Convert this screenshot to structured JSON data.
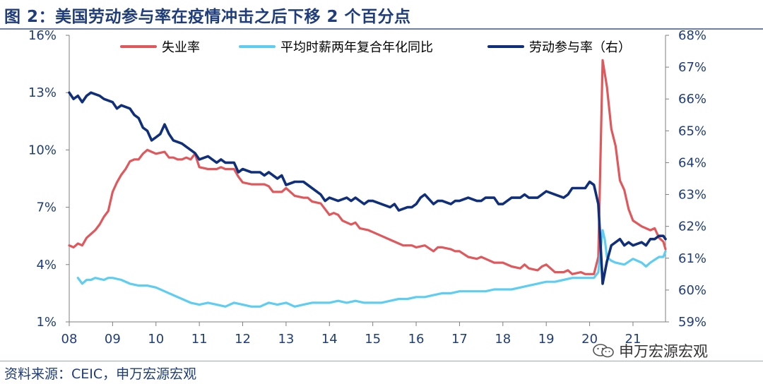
{
  "figure": {
    "title": "图 2：美国劳动参与率在疫情冲击之后下移 2 个百分点",
    "source": "资料来源：CEIC，申万宏源宏观",
    "watermark": "申万宏源宏观",
    "watermark_icon": "wechat-icon"
  },
  "chart_data": {
    "type": "line",
    "x_tick_labels": [
      "08",
      "09",
      "10",
      "11",
      "12",
      "13",
      "14",
      "15",
      "16",
      "17",
      "18",
      "19",
      "20",
      "21"
    ],
    "xlim": [
      2008,
      2021.75
    ],
    "y_left": {
      "ticks": [
        "16%",
        "13%",
        "10%",
        "7%",
        "4%",
        "1%"
      ],
      "ylim": [
        1,
        16
      ]
    },
    "y_right": {
      "ticks": [
        "68%",
        "67%",
        "66%",
        "65%",
        "64%",
        "63%",
        "62%",
        "61%",
        "60%",
        "59%"
      ],
      "ylim": [
        59,
        68
      ]
    },
    "legend_position": "top",
    "grid": false,
    "series": [
      {
        "name": "失业率",
        "axis": "left",
        "color": "#e0585c",
        "points": [
          [
            2008.0,
            5.0
          ],
          [
            2008.1,
            4.9
          ],
          [
            2008.2,
            5.1
          ],
          [
            2008.3,
            5.0
          ],
          [
            2008.4,
            5.4
          ],
          [
            2008.5,
            5.6
          ],
          [
            2008.6,
            5.8
          ],
          [
            2008.7,
            6.1
          ],
          [
            2008.8,
            6.5
          ],
          [
            2008.9,
            6.8
          ],
          [
            2009.0,
            7.8
          ],
          [
            2009.1,
            8.3
          ],
          [
            2009.2,
            8.7
          ],
          [
            2009.3,
            9.0
          ],
          [
            2009.4,
            9.4
          ],
          [
            2009.5,
            9.5
          ],
          [
            2009.6,
            9.5
          ],
          [
            2009.7,
            9.8
          ],
          [
            2009.8,
            10.0
          ],
          [
            2009.9,
            9.9
          ],
          [
            2010.0,
            9.8
          ],
          [
            2010.2,
            9.9
          ],
          [
            2010.3,
            9.6
          ],
          [
            2010.4,
            9.6
          ],
          [
            2010.5,
            9.5
          ],
          [
            2010.6,
            9.5
          ],
          [
            2010.7,
            9.6
          ],
          [
            2010.8,
            9.5
          ],
          [
            2010.9,
            9.8
          ],
          [
            2011.0,
            9.1
          ],
          [
            2011.2,
            9.0
          ],
          [
            2011.4,
            9.0
          ],
          [
            2011.5,
            9.1
          ],
          [
            2011.6,
            9.0
          ],
          [
            2011.8,
            9.0
          ],
          [
            2011.9,
            8.6
          ],
          [
            2012.0,
            8.3
          ],
          [
            2012.2,
            8.2
          ],
          [
            2012.5,
            8.2
          ],
          [
            2012.6,
            8.1
          ],
          [
            2012.7,
            7.8
          ],
          [
            2012.9,
            7.8
          ],
          [
            2013.0,
            8.0
          ],
          [
            2013.2,
            7.6
          ],
          [
            2013.4,
            7.5
          ],
          [
            2013.5,
            7.5
          ],
          [
            2013.6,
            7.3
          ],
          [
            2013.8,
            7.2
          ],
          [
            2013.9,
            6.9
          ],
          [
            2014.0,
            6.6
          ],
          [
            2014.1,
            6.7
          ],
          [
            2014.2,
            6.6
          ],
          [
            2014.3,
            6.3
          ],
          [
            2014.4,
            6.2
          ],
          [
            2014.5,
            6.1
          ],
          [
            2014.6,
            6.2
          ],
          [
            2014.7,
            5.9
          ],
          [
            2014.9,
            5.8
          ],
          [
            2015.0,
            5.7
          ],
          [
            2015.2,
            5.5
          ],
          [
            2015.4,
            5.3
          ],
          [
            2015.6,
            5.1
          ],
          [
            2015.7,
            5.0
          ],
          [
            2015.9,
            5.0
          ],
          [
            2016.0,
            4.9
          ],
          [
            2016.2,
            5.0
          ],
          [
            2016.4,
            4.7
          ],
          [
            2016.5,
            4.9
          ],
          [
            2016.6,
            4.9
          ],
          [
            2016.8,
            4.8
          ],
          [
            2016.9,
            4.7
          ],
          [
            2017.0,
            4.7
          ],
          [
            2017.2,
            4.4
          ],
          [
            2017.4,
            4.3
          ],
          [
            2017.5,
            4.4
          ],
          [
            2017.6,
            4.3
          ],
          [
            2017.8,
            4.1
          ],
          [
            2017.9,
            4.1
          ],
          [
            2018.0,
            4.1
          ],
          [
            2018.2,
            3.9
          ],
          [
            2018.4,
            3.8
          ],
          [
            2018.5,
            4.0
          ],
          [
            2018.6,
            3.8
          ],
          [
            2018.8,
            3.7
          ],
          [
            2018.9,
            3.9
          ],
          [
            2019.0,
            4.0
          ],
          [
            2019.2,
            3.6
          ],
          [
            2019.4,
            3.6
          ],
          [
            2019.5,
            3.7
          ],
          [
            2019.6,
            3.5
          ],
          [
            2019.8,
            3.6
          ],
          [
            2019.9,
            3.5
          ],
          [
            2020.0,
            3.5
          ],
          [
            2020.1,
            3.5
          ],
          [
            2020.2,
            4.4
          ],
          [
            2020.3,
            14.7
          ],
          [
            2020.4,
            13.3
          ],
          [
            2020.5,
            11.1
          ],
          [
            2020.6,
            10.2
          ],
          [
            2020.7,
            8.4
          ],
          [
            2020.8,
            7.9
          ],
          [
            2020.9,
            6.9
          ],
          [
            2021.0,
            6.3
          ],
          [
            2021.2,
            6.0
          ],
          [
            2021.4,
            5.8
          ],
          [
            2021.5,
            5.9
          ],
          [
            2021.6,
            5.4
          ],
          [
            2021.7,
            5.2
          ],
          [
            2021.75,
            4.8
          ]
        ]
      },
      {
        "name": "平均时薪两年复合年化同比",
        "axis": "left",
        "color": "#5dcdf2",
        "points": [
          [
            2008.2,
            3.3
          ],
          [
            2008.3,
            3.0
          ],
          [
            2008.4,
            3.2
          ],
          [
            2008.5,
            3.2
          ],
          [
            2008.6,
            3.3
          ],
          [
            2008.8,
            3.2
          ],
          [
            2008.9,
            3.3
          ],
          [
            2009.0,
            3.3
          ],
          [
            2009.2,
            3.2
          ],
          [
            2009.4,
            3.0
          ],
          [
            2009.6,
            2.9
          ],
          [
            2009.8,
            2.9
          ],
          [
            2010.0,
            2.8
          ],
          [
            2010.2,
            2.6
          ],
          [
            2010.4,
            2.4
          ],
          [
            2010.6,
            2.2
          ],
          [
            2010.8,
            2.0
          ],
          [
            2011.0,
            1.9
          ],
          [
            2011.2,
            2.0
          ],
          [
            2011.4,
            1.9
          ],
          [
            2011.6,
            1.8
          ],
          [
            2011.8,
            2.0
          ],
          [
            2012.0,
            1.9
          ],
          [
            2012.2,
            1.8
          ],
          [
            2012.4,
            1.8
          ],
          [
            2012.6,
            2.0
          ],
          [
            2012.8,
            1.9
          ],
          [
            2013.0,
            2.0
          ],
          [
            2013.2,
            1.8
          ],
          [
            2013.4,
            1.9
          ],
          [
            2013.6,
            2.0
          ],
          [
            2013.8,
            2.0
          ],
          [
            2014.0,
            2.0
          ],
          [
            2014.2,
            2.1
          ],
          [
            2014.4,
            2.0
          ],
          [
            2014.6,
            2.1
          ],
          [
            2014.8,
            2.0
          ],
          [
            2015.0,
            2.0
          ],
          [
            2015.2,
            2.0
          ],
          [
            2015.4,
            2.1
          ],
          [
            2015.6,
            2.2
          ],
          [
            2015.8,
            2.2
          ],
          [
            2016.0,
            2.3
          ],
          [
            2016.2,
            2.3
          ],
          [
            2016.4,
            2.4
          ],
          [
            2016.6,
            2.5
          ],
          [
            2016.8,
            2.5
          ],
          [
            2017.0,
            2.6
          ],
          [
            2017.2,
            2.6
          ],
          [
            2017.4,
            2.6
          ],
          [
            2017.6,
            2.6
          ],
          [
            2017.8,
            2.7
          ],
          [
            2018.0,
            2.7
          ],
          [
            2018.2,
            2.7
          ],
          [
            2018.4,
            2.8
          ],
          [
            2018.6,
            2.9
          ],
          [
            2018.8,
            3.0
          ],
          [
            2019.0,
            3.1
          ],
          [
            2019.2,
            3.1
          ],
          [
            2019.4,
            3.2
          ],
          [
            2019.6,
            3.3
          ],
          [
            2019.8,
            3.3
          ],
          [
            2020.0,
            3.3
          ],
          [
            2020.1,
            3.3
          ],
          [
            2020.2,
            3.6
          ],
          [
            2020.3,
            5.8
          ],
          [
            2020.35,
            5.3
          ],
          [
            2020.4,
            4.4
          ],
          [
            2020.5,
            4.2
          ],
          [
            2020.6,
            4.1
          ],
          [
            2020.8,
            4.0
          ],
          [
            2021.0,
            4.3
          ],
          [
            2021.2,
            4.1
          ],
          [
            2021.3,
            3.9
          ],
          [
            2021.4,
            4.1
          ],
          [
            2021.6,
            4.4
          ],
          [
            2021.7,
            4.4
          ],
          [
            2021.75,
            4.7
          ]
        ]
      },
      {
        "name": "劳动参与率（右）",
        "axis": "right",
        "color": "#102f7a",
        "points": [
          [
            2008.0,
            66.2
          ],
          [
            2008.1,
            66.0
          ],
          [
            2008.2,
            66.1
          ],
          [
            2008.3,
            65.9
          ],
          [
            2008.4,
            66.1
          ],
          [
            2008.5,
            66.2
          ],
          [
            2008.7,
            66.1
          ],
          [
            2008.8,
            66.0
          ],
          [
            2009.0,
            65.9
          ],
          [
            2009.1,
            65.7
          ],
          [
            2009.2,
            65.8
          ],
          [
            2009.4,
            65.7
          ],
          [
            2009.5,
            65.5
          ],
          [
            2009.6,
            65.4
          ],
          [
            2009.7,
            65.1
          ],
          [
            2009.8,
            65.0
          ],
          [
            2009.9,
            64.7
          ],
          [
            2010.0,
            64.8
          ],
          [
            2010.1,
            64.9
          ],
          [
            2010.2,
            65.2
          ],
          [
            2010.3,
            64.9
          ],
          [
            2010.4,
            64.7
          ],
          [
            2010.6,
            64.6
          ],
          [
            2010.7,
            64.5
          ],
          [
            2010.8,
            64.4
          ],
          [
            2010.9,
            64.3
          ],
          [
            2011.0,
            64.1
          ],
          [
            2011.2,
            64.2
          ],
          [
            2011.4,
            64.0
          ],
          [
            2011.5,
            64.1
          ],
          [
            2011.6,
            64.0
          ],
          [
            2011.8,
            64.0
          ],
          [
            2011.9,
            63.7
          ],
          [
            2012.0,
            63.8
          ],
          [
            2012.2,
            63.7
          ],
          [
            2012.4,
            63.7
          ],
          [
            2012.5,
            63.6
          ],
          [
            2012.6,
            63.7
          ],
          [
            2012.8,
            63.5
          ],
          [
            2012.9,
            63.6
          ],
          [
            2013.0,
            63.3
          ],
          [
            2013.2,
            63.4
          ],
          [
            2013.4,
            63.4
          ],
          [
            2013.5,
            63.3
          ],
          [
            2013.6,
            63.2
          ],
          [
            2013.8,
            63.0
          ],
          [
            2013.9,
            62.8
          ],
          [
            2014.0,
            62.9
          ],
          [
            2014.2,
            62.8
          ],
          [
            2014.4,
            62.9
          ],
          [
            2014.5,
            62.8
          ],
          [
            2014.6,
            62.9
          ],
          [
            2014.8,
            62.7
          ],
          [
            2014.9,
            62.8
          ],
          [
            2015.0,
            62.8
          ],
          [
            2015.2,
            62.7
          ],
          [
            2015.4,
            62.6
          ],
          [
            2015.5,
            62.7
          ],
          [
            2015.6,
            62.5
          ],
          [
            2015.8,
            62.6
          ],
          [
            2015.9,
            62.6
          ],
          [
            2016.0,
            62.7
          ],
          [
            2016.1,
            62.9
          ],
          [
            2016.2,
            63.0
          ],
          [
            2016.4,
            62.7
          ],
          [
            2016.5,
            62.8
          ],
          [
            2016.6,
            62.8
          ],
          [
            2016.8,
            62.7
          ],
          [
            2016.9,
            62.8
          ],
          [
            2017.0,
            62.8
          ],
          [
            2017.2,
            62.9
          ],
          [
            2017.4,
            62.8
          ],
          [
            2017.5,
            62.8
          ],
          [
            2017.6,
            62.9
          ],
          [
            2017.8,
            62.9
          ],
          [
            2017.9,
            62.7
          ],
          [
            2018.0,
            62.7
          ],
          [
            2018.2,
            62.9
          ],
          [
            2018.4,
            62.9
          ],
          [
            2018.5,
            63.0
          ],
          [
            2018.6,
            62.9
          ],
          [
            2018.8,
            62.9
          ],
          [
            2018.9,
            63.0
          ],
          [
            2019.0,
            63.1
          ],
          [
            2019.2,
            63.0
          ],
          [
            2019.4,
            62.9
          ],
          [
            2019.5,
            63.0
          ],
          [
            2019.6,
            63.2
          ],
          [
            2019.8,
            63.2
          ],
          [
            2019.9,
            63.2
          ],
          [
            2020.0,
            63.4
          ],
          [
            2020.1,
            63.3
          ],
          [
            2020.2,
            62.7
          ],
          [
            2020.25,
            61.5
          ],
          [
            2020.3,
            60.2
          ],
          [
            2020.4,
            60.9
          ],
          [
            2020.5,
            61.4
          ],
          [
            2020.6,
            61.5
          ],
          [
            2020.7,
            61.6
          ],
          [
            2020.8,
            61.4
          ],
          [
            2020.9,
            61.5
          ],
          [
            2021.0,
            61.4
          ],
          [
            2021.2,
            61.5
          ],
          [
            2021.3,
            61.4
          ],
          [
            2021.4,
            61.6
          ],
          [
            2021.5,
            61.6
          ],
          [
            2021.6,
            61.7
          ],
          [
            2021.7,
            61.7
          ],
          [
            2021.75,
            61.6
          ]
        ]
      }
    ]
  }
}
